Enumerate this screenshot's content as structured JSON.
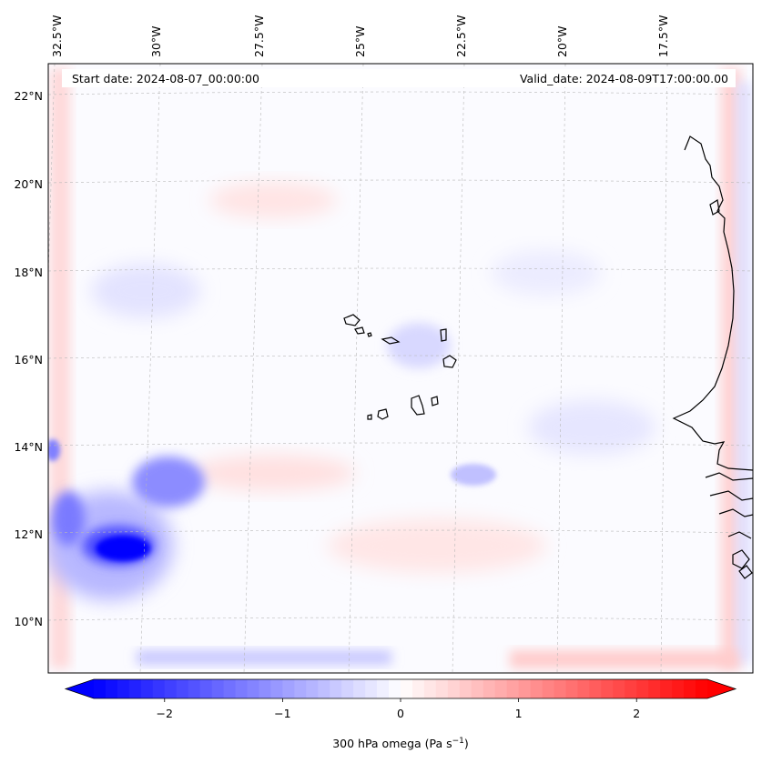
{
  "map": {
    "start_date": "Start date: 2024-08-07_00:00:00",
    "valid_date": "Valid_date: 2024-08-09T17:00:00.00",
    "lon_labels": [
      "32.5°W",
      "30°W",
      "27.5°W",
      "25°W",
      "22.5°W",
      "20°W",
      "17.5°W"
    ],
    "lat_labels": [
      "22°N",
      "20°N",
      "18°N",
      "16°N",
      "14°N",
      "12°N",
      "10°N"
    ],
    "field": "300 hPa omega",
    "units": "Pa s⁻¹"
  },
  "colorbar": {
    "label": "300 hPa omega (Pa s",
    "label_sup": "−1",
    "label_close": ")",
    "ticks": [
      "−2",
      "−1",
      "0",
      "1",
      "2"
    ],
    "tick_values": [
      -2,
      -1,
      0,
      1,
      2
    ],
    "vmin": -2.6,
    "vmax": 2.6,
    "colormap": "bwr",
    "extend": "both",
    "color_min": "#0000ff",
    "color_mid": "#ffffff",
    "color_max": "#ff0000"
  },
  "style": {
    "gridline_color": "#b8b8b8",
    "coastline_color": "#000000"
  }
}
